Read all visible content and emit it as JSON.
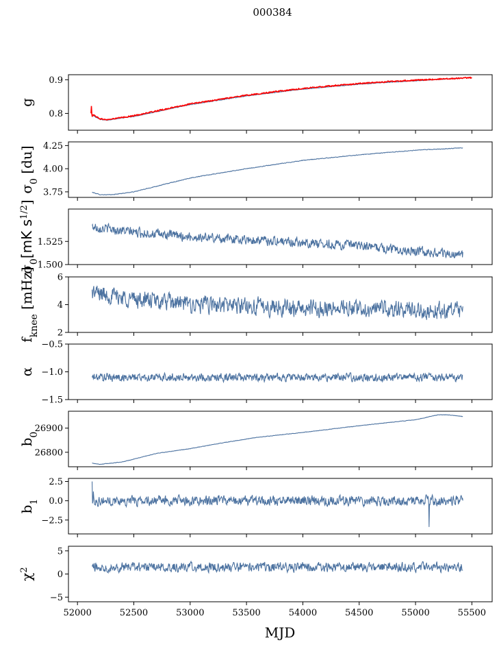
{
  "figure": {
    "suptitle": "000384"
  },
  "chart_data": {
    "type": "line",
    "xlabel": "MJD",
    "xlim": [
      51920,
      55680
    ],
    "xticks": [
      52000,
      52500,
      53000,
      53500,
      54000,
      54500,
      55000,
      55500
    ],
    "series_color": "#4c72a0",
    "overlay_color": "#ff0000",
    "x_start": 52130,
    "x_end": 55420,
    "panels": [
      {
        "id": "g",
        "ylabel": "g",
        "ylim": [
          0.75,
          0.915
        ],
        "yticks": [
          0.8,
          0.9
        ],
        "ytick_labels": [
          "0.8",
          "0.9"
        ],
        "series": [
          {
            "name": "",
            "kind": "trend",
            "points": [
              [
                52130,
                0.795
              ],
              [
                52200,
                0.782
              ],
              [
                52260,
                0.78
              ],
              [
                52500,
                0.791
              ],
              [
                53000,
                0.826
              ],
              [
                53500,
                0.852
              ],
              [
                54000,
                0.872
              ],
              [
                54500,
                0.887
              ],
              [
                55000,
                0.897
              ],
              [
                55420,
                0.905
              ]
            ],
            "noise": 0.0008
          },
          {
            "name": "",
            "kind": "overlay",
            "points": [
              [
                52120,
                0.8
              ],
              [
                52200,
                0.784
              ],
              [
                52260,
                0.781
              ],
              [
                52500,
                0.793
              ],
              [
                53000,
                0.828
              ],
              [
                53500,
                0.854
              ],
              [
                54000,
                0.874
              ],
              [
                54500,
                0.889
              ],
              [
                55000,
                0.899
              ],
              [
                55500,
                0.906
              ]
            ],
            "noise": 0.0015,
            "spikes": [
              [
                52125,
                0.822
              ],
              [
                52130,
                0.79
              ]
            ]
          }
        ]
      },
      {
        "id": "sigma0_du",
        "ylabel": "σ0 [du]",
        "ylim": [
          3.69,
          4.29
        ],
        "yticks": [
          3.75,
          4.0,
          4.25
        ],
        "ytick_labels": [
          "3.75",
          "4.00",
          "4.25"
        ],
        "series": [
          {
            "name": "",
            "kind": "trend",
            "points": [
              [
                52130,
                3.745
              ],
              [
                52200,
                3.72
              ],
              [
                52300,
                3.718
              ],
              [
                52500,
                3.75
              ],
              [
                53000,
                3.9
              ],
              [
                53500,
                4.0
              ],
              [
                54000,
                4.09
              ],
              [
                54500,
                4.15
              ],
              [
                55000,
                4.2
              ],
              [
                55420,
                4.225
              ]
            ],
            "noise": 0.003
          }
        ]
      },
      {
        "id": "sigma0_mk",
        "ylabel": "σ0[mK s1/2]",
        "ylim": [
          1.5,
          1.56
        ],
        "yticks": [
          1.5,
          1.525
        ],
        "ytick_labels": [
          "1.500",
          "1.525"
        ],
        "series": [
          {
            "name": "",
            "kind": "trend",
            "points": [
              [
                52130,
                1.541
              ],
              [
                52500,
                1.535
              ],
              [
                53000,
                1.53
              ],
              [
                53500,
                1.527
              ],
              [
                54000,
                1.524
              ],
              [
                54500,
                1.52
              ],
              [
                55000,
                1.515
              ],
              [
                55420,
                1.51
              ]
            ],
            "noise": 0.0045
          }
        ]
      },
      {
        "id": "fknee",
        "ylabel": "fknee [mHz]",
        "ylim": [
          2,
          6
        ],
        "yticks": [
          2,
          4,
          6
        ],
        "ytick_labels": [
          "2",
          "4",
          "6"
        ],
        "series": [
          {
            "name": "",
            "kind": "trend",
            "points": [
              [
                52130,
                4.9
              ],
              [
                52500,
                4.4
              ],
              [
                53000,
                4.0
              ],
              [
                53500,
                3.9
              ],
              [
                54000,
                3.75
              ],
              [
                54500,
                3.7
              ],
              [
                55000,
                3.6
              ],
              [
                55420,
                3.5
              ]
            ],
            "noise": 0.55
          }
        ]
      },
      {
        "id": "alpha",
        "ylabel": "α",
        "ylim": [
          -1.5,
          -0.5
        ],
        "yticks": [
          -1.5,
          -1.0,
          -0.5
        ],
        "ytick_labels": [
          "−1.5",
          "−1.0",
          "−0.5"
        ],
        "series": [
          {
            "name": "",
            "kind": "trend",
            "points": [
              [
                52130,
                -1.1
              ],
              [
                55420,
                -1.1
              ]
            ],
            "noise": 0.065
          }
        ]
      },
      {
        "id": "b0",
        "ylabel": "b0",
        "ylim": [
          26740,
          26970
        ],
        "yticks": [
          26800,
          26900
        ],
        "ytick_labels": [
          "26800",
          "26900"
        ],
        "series": [
          {
            "name": "",
            "kind": "trend",
            "points": [
              [
                52130,
                26755
              ],
              [
                52200,
                26750
              ],
              [
                52400,
                26760
              ],
              [
                52700,
                26795
              ],
              [
                53000,
                26815
              ],
              [
                53300,
                26840
              ],
              [
                53600,
                26862
              ],
              [
                54000,
                26882
              ],
              [
                54500,
                26910
              ],
              [
                55000,
                26935
              ],
              [
                55200,
                26955
              ],
              [
                55300,
                26955
              ],
              [
                55420,
                26948
              ]
            ],
            "noise": 0.8
          }
        ]
      },
      {
        "id": "b1",
        "ylabel": "b1",
        "ylim": [
          -4.3,
          2.9
        ],
        "yticks": [
          -2.5,
          0.0,
          2.5
        ],
        "ytick_labels": [
          "−2.5",
          "0.0",
          "2.5"
        ],
        "series": [
          {
            "name": "",
            "kind": "trend",
            "points": [
              [
                52130,
                0.0
              ],
              [
                55420,
                0.0
              ]
            ],
            "noise": 0.55,
            "spikes": [
              [
                52130,
                2.5
              ],
              [
                52140,
                1.2
              ],
              [
                55120,
                -3.4
              ]
            ]
          }
        ]
      },
      {
        "id": "chi2",
        "ylabel": "χ2",
        "ylim": [
          -6,
          6
        ],
        "yticks": [
          -5,
          0,
          5
        ],
        "ytick_labels": [
          "−5",
          "0",
          "5"
        ],
        "series": [
          {
            "name": "",
            "kind": "trend",
            "points": [
              [
                52130,
                1.5
              ],
              [
                55420,
                1.5
              ]
            ],
            "noise": 0.9
          }
        ]
      }
    ]
  }
}
